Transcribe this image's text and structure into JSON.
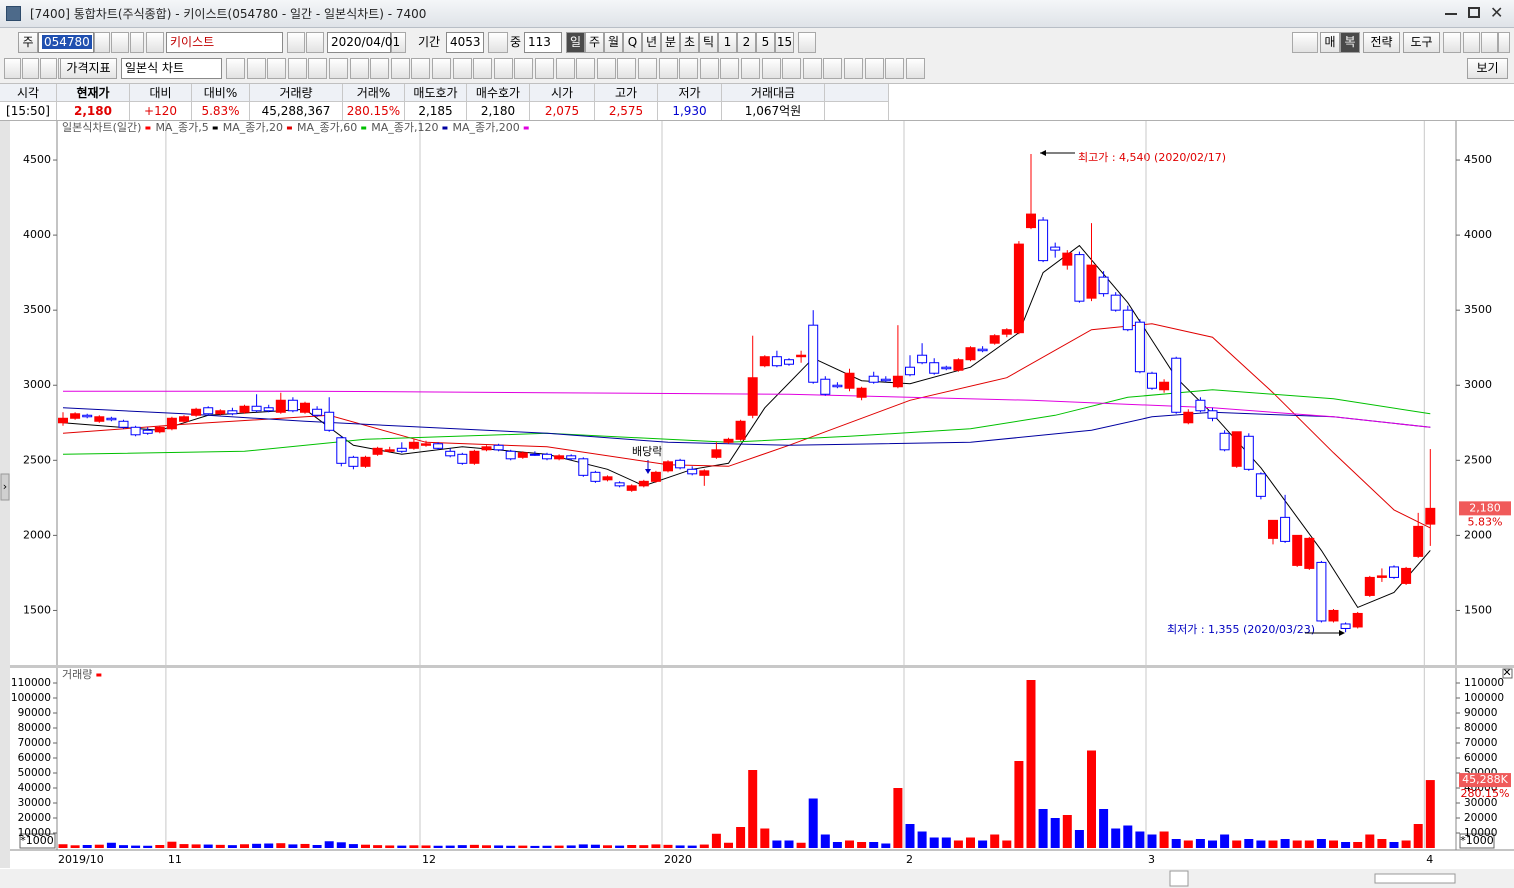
{
  "window": {
    "title": "[7400] 통합차트(주식종합) - 키이스트(054780 - 일간 - 일본식차트) - 7400"
  },
  "toolbar": {
    "code_prefix": "주",
    "code": "054780",
    "name": "키이스트",
    "date": "2020/04/01",
    "period_label": "기간",
    "period": "4053",
    "zoom_label": "중",
    "zoom": "113",
    "intervals": [
      "일",
      "주",
      "월",
      "Q",
      "년",
      "분",
      "초",
      "틱",
      "1",
      "2",
      "5",
      "15"
    ],
    "right_buttons": [
      "매",
      "복",
      "전략",
      "도구"
    ],
    "indicator": "가격지표",
    "chart_type": "일본식 차트",
    "view": "보기"
  },
  "quote_table": {
    "headers": [
      "시각",
      "현재가",
      "대비",
      "대비%",
      "거래량",
      "거래%",
      "매도호가",
      "매수호가",
      "시가",
      "고가",
      "저가",
      "거래대금"
    ],
    "values": [
      "[15:50]",
      "2,180",
      "+120",
      "5.83%",
      "45,288,367",
      "280.15%",
      "2,185",
      "2,180",
      "2,075",
      "2,575",
      "1,930",
      "1,067억원"
    ]
  },
  "chart_data": [
    {
      "type": "candlestick",
      "legend_title": "일본식차트(일간)",
      "up_color": "#ff0000",
      "down_color": "#0000ff",
      "open": [
        2750,
        2780,
        2800,
        2760,
        2780,
        2760,
        2720,
        2700,
        2690,
        2710,
        2760,
        2800,
        2850,
        2810,
        2830,
        2820,
        2860,
        2850,
        2820,
        2900,
        2820,
        2840,
        2820,
        2650,
        2520,
        2460,
        2540,
        2560,
        2580,
        2580,
        2600,
        2610,
        2560,
        2540,
        2480,
        2570,
        2600,
        2560,
        2520,
        2540,
        2540,
        2510,
        2530,
        2510,
        2420,
        2370,
        2350,
        2300,
        2330,
        2360,
        2430,
        2500,
        2440,
        2400,
        2520,
        2620,
        2640,
        2800,
        3130,
        3190,
        3170,
        3190,
        3400,
        3040,
        3000,
        2980,
        2920,
        3060,
        3040,
        2990,
        3120,
        3200,
        3150,
        3120,
        3100,
        3170,
        3240,
        3280,
        3340,
        3350,
        4050,
        4100,
        3920,
        3800,
        3870,
        3580,
        3720,
        3600,
        3500,
        3420,
        3080,
        2970,
        3180,
        2750,
        2900,
        2830,
        2680,
        2460,
        2660,
        2410,
        1980,
        2120,
        1800,
        1780,
        1820,
        1430,
        1410,
        1390,
        1600,
        1720,
        1790,
        1680,
        1860,
        2075
      ],
      "high": [
        2820,
        2820,
        2810,
        2800,
        2790,
        2770,
        2730,
        2720,
        2730,
        2790,
        2800,
        2850,
        2860,
        2840,
        2850,
        2870,
        2940,
        2870,
        2950,
        2920,
        2890,
        2860,
        2920,
        2660,
        2530,
        2530,
        2590,
        2590,
        2620,
        2640,
        2630,
        2620,
        2580,
        2550,
        2570,
        2600,
        2610,
        2570,
        2560,
        2560,
        2550,
        2540,
        2540,
        2520,
        2430,
        2400,
        2360,
        2340,
        2370,
        2430,
        2500,
        2510,
        2460,
        2440,
        2620,
        2650,
        2770,
        3330,
        3200,
        3230,
        3180,
        3230,
        3500,
        3060,
        3020,
        3110,
        2990,
        3090,
        3060,
        3400,
        3200,
        3280,
        3180,
        3130,
        3180,
        3260,
        3260,
        3340,
        3380,
        3960,
        4540,
        4120,
        3950,
        3900,
        3890,
        4080,
        3760,
        3620,
        3530,
        3440,
        3090,
        3040,
        3190,
        2840,
        2920,
        2850,
        2700,
        2690,
        2680,
        2420,
        2100,
        2270,
        2000,
        1990,
        1830,
        1510,
        1420,
        1490,
        1730,
        1780,
        1800,
        1790,
        2150,
        2575
      ],
      "low": [
        2730,
        2770,
        2780,
        2750,
        2760,
        2710,
        2660,
        2670,
        2680,
        2700,
        2750,
        2790,
        2800,
        2800,
        2800,
        2810,
        2820,
        2820,
        2810,
        2820,
        2810,
        2790,
        2690,
        2460,
        2440,
        2450,
        2530,
        2550,
        2550,
        2570,
        2590,
        2570,
        2520,
        2470,
        2470,
        2560,
        2560,
        2500,
        2510,
        2530,
        2500,
        2500,
        2500,
        2390,
        2350,
        2360,
        2320,
        2290,
        2320,
        2350,
        2420,
        2440,
        2400,
        2330,
        2510,
        2610,
        2630,
        2780,
        3120,
        3120,
        3130,
        3150,
        3010,
        2930,
        2980,
        2960,
        2900,
        3010,
        3020,
        2980,
        3060,
        3140,
        3070,
        3100,
        3090,
        3160,
        3220,
        3270,
        3320,
        3340,
        4040,
        3820,
        3850,
        3770,
        3550,
        3560,
        3590,
        3490,
        3360,
        3080,
        2970,
        2950,
        2810,
        2740,
        2820,
        2760,
        2560,
        2450,
        2430,
        2240,
        1940,
        1950,
        1790,
        1770,
        1420,
        1420,
        1355,
        1380,
        1590,
        1690,
        1710,
        1670,
        1850,
        1930
      ],
      "close": [
        2780,
        2810,
        2790,
        2790,
        2770,
        2720,
        2670,
        2680,
        2720,
        2780,
        2790,
        2840,
        2810,
        2830,
        2810,
        2860,
        2830,
        2830,
        2900,
        2830,
        2880,
        2800,
        2700,
        2480,
        2460,
        2520,
        2580,
        2570,
        2560,
        2620,
        2610,
        2580,
        2530,
        2480,
        2560,
        2590,
        2570,
        2510,
        2550,
        2535,
        2510,
        2530,
        2510,
        2400,
        2360,
        2390,
        2330,
        2330,
        2360,
        2420,
        2490,
        2450,
        2410,
        2430,
        2570,
        2640,
        2760,
        3050,
        3190,
        3130,
        3140,
        3200,
        3020,
        2940,
        2990,
        3080,
        2980,
        3020,
        3030,
        3060,
        3070,
        3150,
        3080,
        3110,
        3170,
        3250,
        3230,
        3330,
        3370,
        3940,
        4140,
        3830,
        3900,
        3880,
        3560,
        3800,
        3610,
        3500,
        3370,
        3090,
        2980,
        3020,
        2820,
        2820,
        2830,
        2780,
        2570,
        2690,
        2440,
        2260,
        2100,
        1960,
        2000,
        1980,
        1430,
        1500,
        1380,
        1480,
        1720,
        1730,
        1720,
        1780,
        2060,
        2180
      ],
      "ylim": [
        1130,
        4760
      ],
      "yticks": [
        1500,
        2000,
        2500,
        3000,
        3500,
        4000,
        4500
      ],
      "series": [
        {
          "name": "MA_종가,5",
          "color": "#000000",
          "x": [
            0,
            8,
            12,
            20,
            24,
            28,
            33,
            40,
            45,
            48,
            52,
            55,
            58,
            62,
            66,
            70,
            75,
            79,
            81,
            84,
            88,
            92,
            95,
            99,
            104,
            107,
            110,
            113
          ],
          "values": [
            2750,
            2700,
            2800,
            2840,
            2600,
            2540,
            2590,
            2540,
            2440,
            2330,
            2440,
            2480,
            2850,
            3180,
            3030,
            3010,
            3120,
            3350,
            3750,
            3930,
            3550,
            3050,
            2810,
            2450,
            1900,
            1520,
            1620,
            1900
          ]
        },
        {
          "name": "MA_종가,20",
          "color": "#e00000",
          "x": [
            0,
            10,
            22,
            30,
            40,
            50,
            55,
            60,
            70,
            78,
            85,
            90,
            95,
            100,
            105,
            110,
            113
          ],
          "values": [
            2680,
            2740,
            2800,
            2620,
            2590,
            2470,
            2460,
            2600,
            2900,
            3050,
            3370,
            3410,
            3320,
            2950,
            2550,
            2170,
            2050
          ]
        },
        {
          "name": "MA_종가,60",
          "color": "#00c000",
          "x": [
            0,
            15,
            25,
            40,
            55,
            65,
            75,
            82,
            88,
            95,
            105,
            113
          ],
          "values": [
            2540,
            2560,
            2640,
            2680,
            2620,
            2660,
            2710,
            2800,
            2920,
            2970,
            2910,
            2810
          ]
        },
        {
          "name": "MA_종가,120",
          "color": "#0000a0",
          "x": [
            0,
            10,
            20,
            40,
            50,
            60,
            75,
            85,
            90,
            95,
            105,
            113
          ],
          "values": [
            2850,
            2810,
            2760,
            2680,
            2620,
            2600,
            2620,
            2700,
            2790,
            2820,
            2790,
            2720
          ]
        },
        {
          "name": "MA_종가,200",
          "color": "#e000e0",
          "x": [
            0,
            20,
            40,
            60,
            80,
            95,
            105,
            113
          ],
          "values": [
            2960,
            2960,
            2950,
            2940,
            2900,
            2850,
            2790,
            2720
          ]
        }
      ],
      "annotations": {
        "high": "최고가 : 4,540 (2020/02/17)",
        "low": "최저가 : 1,355 (2020/03/23)",
        "event": "배당락"
      },
      "last_price": {
        "value": 2180,
        "label": "2,180"
      },
      "last_change": "5.83%"
    },
    {
      "type": "bar",
      "legend_title": "거래량",
      "color": "#ff0000",
      "categories": [
        "2019/10",
        null,
        null,
        null,
        null,
        null,
        null,
        null,
        null,
        "11",
        null,
        null,
        null,
        null,
        null,
        null,
        null,
        null,
        null,
        null,
        null,
        null,
        null,
        null,
        null,
        null,
        null,
        null,
        null,
        null,
        "12",
        null,
        null,
        null,
        null,
        null,
        null,
        null,
        null,
        null,
        null,
        null,
        null,
        null,
        null,
        null,
        null,
        null,
        null,
        null,
        "2020",
        null,
        null,
        null,
        null,
        null,
        null,
        null,
        null,
        null,
        null,
        null,
        null,
        null,
        null,
        null,
        null,
        null,
        null,
        null,
        "2",
        null,
        null,
        null,
        null,
        null,
        null,
        null,
        null,
        null,
        null,
        null,
        null,
        null,
        null,
        null,
        null,
        null,
        null,
        null,
        "3",
        null,
        null,
        null,
        null,
        null,
        null,
        null,
        null,
        null,
        null,
        null,
        null,
        null,
        null,
        null,
        null,
        null,
        null,
        null,
        null,
        null,
        null,
        "4"
      ],
      "values": [
        2500,
        1800,
        2000,
        2200,
        3500,
        1900,
        1600,
        1500,
        2000,
        4200,
        2600,
        2400,
        2300,
        2100,
        1900,
        2500,
        2800,
        3000,
        3200,
        2400,
        2700,
        2000,
        4500,
        3800,
        2600,
        2200,
        1900,
        1700,
        1600,
        1800,
        1700,
        1500,
        1600,
        1900,
        2100,
        1800,
        1700,
        1500,
        1600,
        1400,
        1500,
        1600,
        1700,
        2400,
        2200,
        1800,
        1600,
        2000,
        1900,
        2400,
        2100,
        1700,
        1600,
        2300,
        9500,
        3500,
        14000,
        52000,
        13000,
        5000,
        5000,
        3500,
        33000,
        9000,
        4000,
        5000,
        4000,
        4000,
        3000,
        40000,
        16000,
        11000,
        7000,
        7000,
        5000,
        7000,
        5000,
        9000,
        5000,
        58000,
        112000,
        26000,
        20000,
        22000,
        12000,
        65000,
        26000,
        13000,
        15000,
        11000,
        9000,
        11000,
        6000,
        5000,
        6000,
        5000,
        9000,
        5000,
        6000,
        5000,
        5000,
        6000,
        5000,
        5000,
        6000,
        5000,
        4000,
        4000,
        9000,
        6000,
        4000,
        5000,
        16000,
        45288
      ],
      "ylim": [
        0,
        120000
      ],
      "yticks": [
        10000,
        20000,
        30000,
        40000,
        50000,
        60000,
        70000,
        80000,
        90000,
        100000,
        110000
      ],
      "unit_label": "*1000",
      "last_value": {
        "value": 45288,
        "label": "45,288K"
      },
      "last_change": "280.15%"
    }
  ]
}
